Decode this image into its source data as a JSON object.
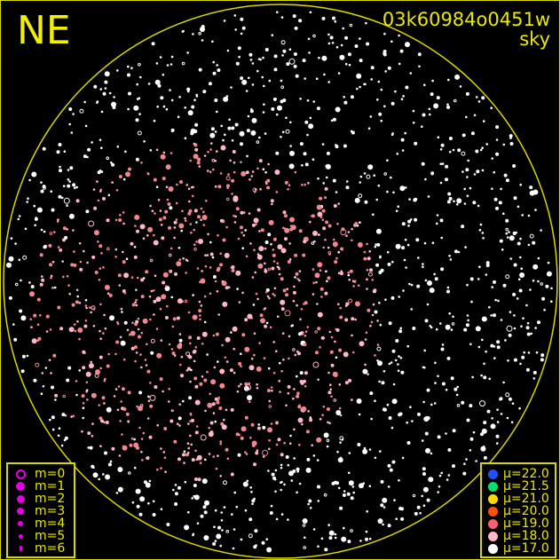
{
  "direction_label": "NE",
  "title": {
    "id": "03k60984o0451w",
    "subtitle": "sky"
  },
  "colors": {
    "frame": "#d8d800",
    "text": "#e8e800",
    "magnitude_symbol": "#e000e0",
    "background": "#000000"
  },
  "magnitude_legend": [
    {
      "label": "m=0",
      "style": "ring"
    },
    {
      "label": "m=1",
      "style": "dot"
    },
    {
      "label": "m=2",
      "style": "dot"
    },
    {
      "label": "m=3",
      "style": "dot"
    },
    {
      "label": "m=4",
      "style": "dot"
    },
    {
      "label": "m=5",
      "style": "dot"
    },
    {
      "label": "m=6",
      "style": "dot"
    }
  ],
  "brightness_legend": [
    {
      "label": "μ=22.0",
      "color": "#2050ff"
    },
    {
      "label": "μ=21.5",
      "color": "#00e070"
    },
    {
      "label": "μ=21.0",
      "color": "#ffd800"
    },
    {
      "label": "μ=20.0",
      "color": "#ff5010"
    },
    {
      "label": "μ=19.0",
      "color": "#ff6070"
    },
    {
      "label": "μ=18.0",
      "color": "#ffb8c8"
    },
    {
      "label": "μ=17.0",
      "color": "#ffffff"
    }
  ]
}
